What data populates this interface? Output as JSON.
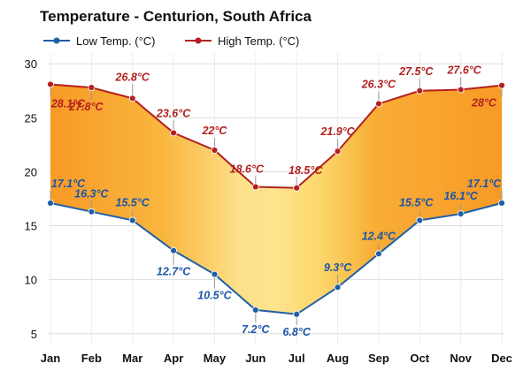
{
  "chart_data": {
    "type": "area",
    "title": "Temperature - Centurion, South Africa",
    "categories": [
      "Jan",
      "Feb",
      "Mar",
      "Apr",
      "May",
      "Jun",
      "Jul",
      "Aug",
      "Sep",
      "Oct",
      "Nov",
      "Dec"
    ],
    "series": [
      {
        "name": "Low Temp. (°C)",
        "color": "#1f5fa8",
        "values": [
          17.1,
          16.3,
          15.5,
          12.7,
          10.5,
          7.2,
          6.8,
          9.3,
          12.4,
          15.5,
          16.1,
          17.1
        ],
        "labels": [
          "17.1°C",
          "16.3°C",
          "15.5°C",
          "12.7°C",
          "10.5°C",
          "7.2°C",
          "6.8°C",
          "9.3°C",
          "12.4°C",
          "15.5°C",
          "16.1°C",
          "17.1°C"
        ]
      },
      {
        "name": "High Temp. (°C)",
        "color": "#b32020",
        "values": [
          28.1,
          27.8,
          26.8,
          23.6,
          22,
          18.6,
          18.5,
          21.9,
          26.3,
          27.5,
          27.6,
          28
        ],
        "labels": [
          "28.1°C",
          "27.8°C",
          "26.8°C",
          "23.6°C",
          "22°C",
          "18.6°C",
          "18.5°C",
          "21.9°C",
          "26.3°C",
          "27.5°C",
          "27.6°C",
          "28°C"
        ]
      }
    ],
    "y_ticks": [
      "5",
      "10",
      "15",
      "20",
      "25",
      "30"
    ],
    "ylim": [
      4,
      31
    ],
    "legend": "top-left",
    "grid": true,
    "fill_colors": {
      "warm": "#f79a26",
      "cool": "#fce38a"
    }
  }
}
